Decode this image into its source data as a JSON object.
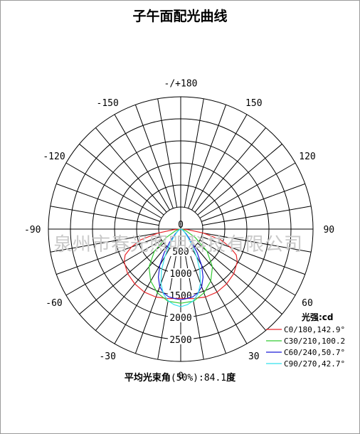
{
  "title": "子午面配光曲线",
  "footer": {
    "label": "平均光束角",
    "paren": "(50%)",
    "value": ":84.1",
    "unit": "度"
  },
  "watermark": "泉州市春光照明科技有限公司",
  "legend": {
    "title": "光强:cd",
    "items": [
      {
        "label": "C0/180,142.9°",
        "color": "#e8262a"
      },
      {
        "label": "C30/210,100.2",
        "color": "#33cc33"
      },
      {
        "label": "C60/240,50.7°",
        "color": "#1a1ad6"
      },
      {
        "label": "C90/270,42.7°",
        "color": "#33e0ee"
      }
    ]
  },
  "chart_data": {
    "type": "polar",
    "title": "子午面配光曲线",
    "unit": "cd",
    "angle_labels": [
      {
        "angle": 180,
        "text": "-/+180"
      },
      {
        "angle": -150,
        "text": "-150"
      },
      {
        "angle": 150,
        "text": "150"
      },
      {
        "angle": -120,
        "text": "-120"
      },
      {
        "angle": 120,
        "text": "120"
      },
      {
        "angle": -90,
        "text": "-90"
      },
      {
        "angle": 90,
        "text": "90"
      },
      {
        "angle": -60,
        "text": "-60"
      },
      {
        "angle": 60,
        "text": "60"
      },
      {
        "angle": -30,
        "text": "-30"
      },
      {
        "angle": 30,
        "text": "30"
      },
      {
        "angle": 0,
        "text": "0"
      }
    ],
    "radial_ticks": [
      0,
      500,
      1000,
      1500,
      2000,
      2500
    ],
    "radial_tick_labels": [
      "0",
      "500",
      "1000",
      "1500",
      "2000",
      "2500"
    ],
    "r_max": 3000,
    "angular_grid_step_deg": 10,
    "series": [
      {
        "name": "C0/180,142.9°",
        "color": "#e8262a",
        "points": [
          [
            0,
            1570
          ],
          [
            10,
            1600
          ],
          [
            20,
            1640
          ],
          [
            30,
            1650
          ],
          [
            40,
            1620
          ],
          [
            50,
            1570
          ],
          [
            60,
            1480
          ],
          [
            65,
            1390
          ],
          [
            70,
            1190
          ],
          [
            75,
            940
          ],
          [
            80,
            520
          ],
          [
            85,
            170
          ],
          [
            90,
            0
          ]
        ]
      },
      {
        "name": "C30/210,100.2",
        "color": "#33cc33",
        "points": [
          [
            0,
            1680
          ],
          [
            10,
            1660
          ],
          [
            20,
            1540
          ],
          [
            30,
            1360
          ],
          [
            40,
            1120
          ],
          [
            50,
            780
          ],
          [
            60,
            380
          ],
          [
            70,
            140
          ],
          [
            80,
            50
          ],
          [
            90,
            0
          ]
        ]
      },
      {
        "name": "C60/240,50.7°",
        "color": "#1a1ad6",
        "points": [
          [
            0,
            1600
          ],
          [
            5,
            1580
          ],
          [
            10,
            1560
          ],
          [
            15,
            1500
          ],
          [
            20,
            1390
          ],
          [
            25,
            1200
          ],
          [
            30,
            950
          ],
          [
            35,
            650
          ],
          [
            40,
            400
          ],
          [
            50,
            150
          ],
          [
            60,
            60
          ],
          [
            70,
            30
          ],
          [
            90,
            0
          ]
        ]
      },
      {
        "name": "C90/270,42.7°",
        "color": "#33e0ee",
        "points": [
          [
            0,
            1760
          ],
          [
            5,
            1720
          ],
          [
            10,
            1650
          ],
          [
            15,
            1520
          ],
          [
            20,
            1310
          ],
          [
            25,
            1030
          ],
          [
            30,
            720
          ],
          [
            35,
            450
          ],
          [
            40,
            270
          ],
          [
            50,
            120
          ],
          [
            60,
            60
          ],
          [
            70,
            30
          ],
          [
            90,
            0
          ]
        ]
      }
    ]
  }
}
